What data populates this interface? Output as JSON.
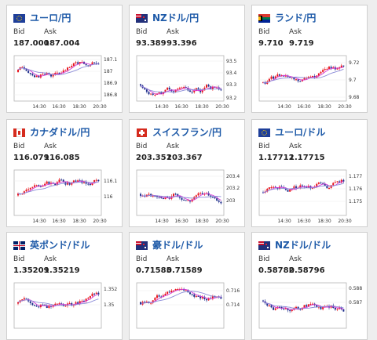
{
  "labels": {
    "bid": "Bid",
    "ask": "Ask"
  },
  "colors": {
    "title": "#1e5aa8",
    "up": "#e8141c",
    "down": "#1f2f8c",
    "ma_short": "#d33ad8",
    "ma_long": "#8b8bd8"
  },
  "cards": [
    {
      "name": "eur-jpy",
      "title": "ユーロ/円",
      "flag": "eu",
      "bid": "187.000",
      "ask": "187.004",
      "chart_data": {
        "type": "candlestick",
        "y_ticks": [
          "187.1",
          "187",
          "186.9",
          "186.8"
        ],
        "x_ticks": [
          "14:30",
          "16:30",
          "18:30",
          "20:30"
        ]
      }
    },
    {
      "name": "nzd-jpy",
      "title": "NZドル/円",
      "flag": "nz",
      "bid": "93.389",
      "ask": "93.396",
      "chart_data": {
        "type": "candlestick",
        "y_ticks": [
          "93.5",
          "93.4",
          "93.3",
          "93.2"
        ],
        "x_ticks": [
          "14:30",
          "16:30",
          "18:30",
          "20:30"
        ]
      }
    },
    {
      "name": "zar-jpy",
      "title": "ランド/円",
      "flag": "za",
      "bid": "9.710",
      "ask": "9.719",
      "chart_data": {
        "type": "candlestick",
        "y_ticks": [
          "9.72",
          "9.7",
          "9.68"
        ],
        "x_ticks": [
          "14:30",
          "16:30",
          "18:30",
          "20:30"
        ]
      }
    },
    {
      "name": "cad-jpy",
      "title": "カナダドル/円",
      "flag": "ca",
      "bid": "116.079",
      "ask": "116.085",
      "chart_data": {
        "type": "candlestick",
        "y_ticks": [
          "116.1",
          "116"
        ],
        "x_ticks": [
          "14:30",
          "16:30",
          "18:30",
          "20:30"
        ]
      }
    },
    {
      "name": "chf-jpy",
      "title": "スイスフラン/円",
      "flag": "ch",
      "bid": "203.351",
      "ask": "203.367",
      "chart_data": {
        "type": "candlestick",
        "y_ticks": [
          "203.4",
          "203.2",
          "203"
        ],
        "x_ticks": [
          "14:30",
          "16:30",
          "18:30",
          "20:30"
        ]
      }
    },
    {
      "name": "eur-usd",
      "title": "ユーロ/ドル",
      "flag": "eu",
      "bid": "1.17712",
      "ask": "1.17715",
      "chart_data": {
        "type": "candlestick",
        "y_ticks": [
          "1.177",
          "1.176",
          "1.175"
        ],
        "x_ticks": [
          "14:30",
          "16:30",
          "18:30",
          "20:30"
        ]
      }
    },
    {
      "name": "gbp-usd",
      "title": "英ポンド/ドル",
      "flag": "gb",
      "bid": "1.35209",
      "ask": "1.35219",
      "chart_data": {
        "type": "candlestick",
        "y_ticks": [
          "1.352",
          "1.35"
        ],
        "x_ticks": []
      }
    },
    {
      "name": "aud-usd",
      "title": "豪ドル/ドル",
      "flag": "au",
      "bid": "0.71585",
      "ask": "0.71589",
      "chart_data": {
        "type": "candlestick",
        "y_ticks": [
          "0.716",
          "0.714"
        ],
        "x_ticks": []
      }
    },
    {
      "name": "nzd-usd",
      "title": "NZドル/ドル",
      "flag": "nz",
      "bid": "0.58782",
      "ask": "0.58796",
      "chart_data": {
        "type": "candlestick",
        "y_ticks": [
          "0.588",
          "0.587"
        ],
        "x_ticks": []
      }
    }
  ]
}
